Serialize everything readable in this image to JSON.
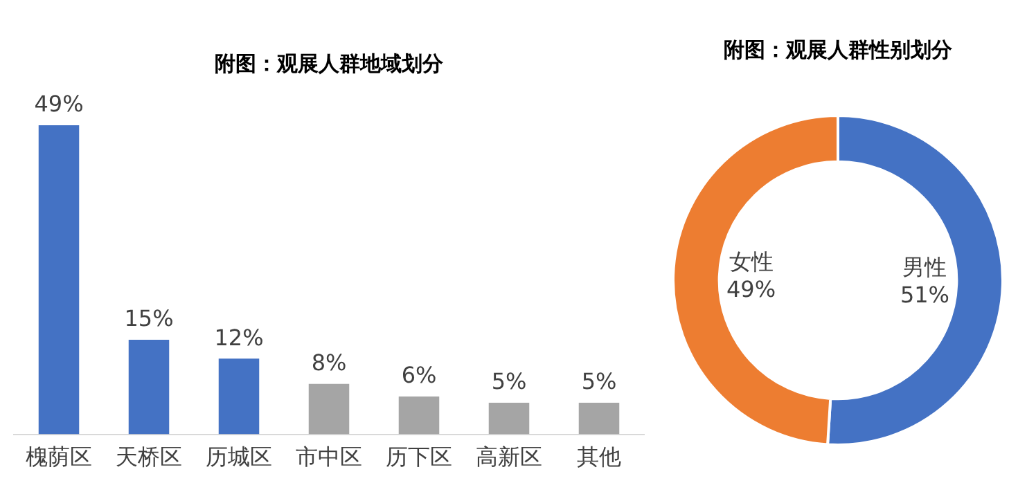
{
  "chart_data": [
    {
      "type": "bar",
      "title": "附图：观展人群地域划分",
      "categories": [
        "槐荫区",
        "天桥区",
        "历城区",
        "市中区",
        "历下区",
        "高新区",
        "其他"
      ],
      "values": [
        49,
        15,
        12,
        8,
        6,
        5,
        5
      ],
      "colors": [
        "#4472c4",
        "#4472c4",
        "#4472c4",
        "#a5a5a5",
        "#a5a5a5",
        "#a5a5a5",
        "#a5a5a5"
      ],
      "value_labels": [
        "49%",
        "15%",
        "12%",
        "8%",
        "6%",
        "5%",
        "5%"
      ],
      "grid": false,
      "legend": false,
      "tick_labels": "x"
    },
    {
      "type": "donut",
      "title": "附图：观展人群性别划分",
      "categories": [
        "男性",
        "女性"
      ],
      "values": [
        51,
        49
      ],
      "colors": [
        "#4472c4",
        "#ed7d31"
      ],
      "value_labels": [
        "51%",
        "49%"
      ],
      "legend": false
    }
  ]
}
